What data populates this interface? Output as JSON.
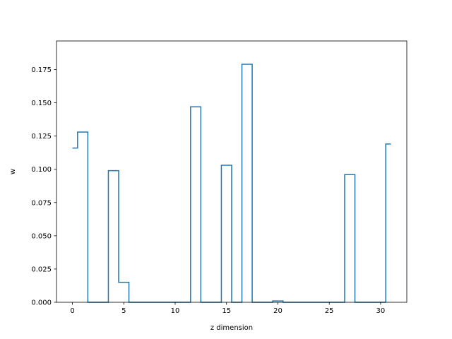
{
  "chart_data": {
    "type": "line",
    "drawstyle": "steps-mid",
    "title": "",
    "xlabel": "z dimension",
    "ylabel": "w",
    "xlim": [
      -1.55,
      32.55
    ],
    "ylim": [
      0,
      0.1965
    ],
    "x_ticks": [
      0,
      5,
      10,
      15,
      20,
      25,
      30
    ],
    "y_ticks": [
      0.0,
      0.025,
      0.05,
      0.075,
      0.1,
      0.125,
      0.15,
      0.175
    ],
    "y_tick_labels": [
      "0.000",
      "0.025",
      "0.050",
      "0.075",
      "0.100",
      "0.125",
      "0.150",
      "0.175"
    ],
    "grid": false,
    "line_color": "#1f77b4",
    "series": [
      {
        "x": [
          0,
          1,
          2,
          3,
          4,
          5,
          6,
          7,
          8,
          9,
          10,
          11,
          12,
          13,
          14,
          15,
          16,
          17,
          18,
          19,
          20,
          21,
          22,
          23,
          24,
          25,
          26,
          27,
          28,
          29,
          30,
          31
        ],
        "values": [
          0.116,
          0.128,
          0.0,
          0.0,
          0.099,
          0.015,
          0.0,
          0.0,
          0.0,
          0.0,
          0.0,
          0.0,
          0.147,
          0.0,
          0.0,
          0.103,
          0.0,
          0.179,
          0.0,
          0.0,
          0.001,
          0.0,
          0.0,
          0.0,
          0.0,
          0.0,
          0.0,
          0.096,
          0.0,
          0.0,
          0.0,
          0.119
        ]
      }
    ]
  }
}
